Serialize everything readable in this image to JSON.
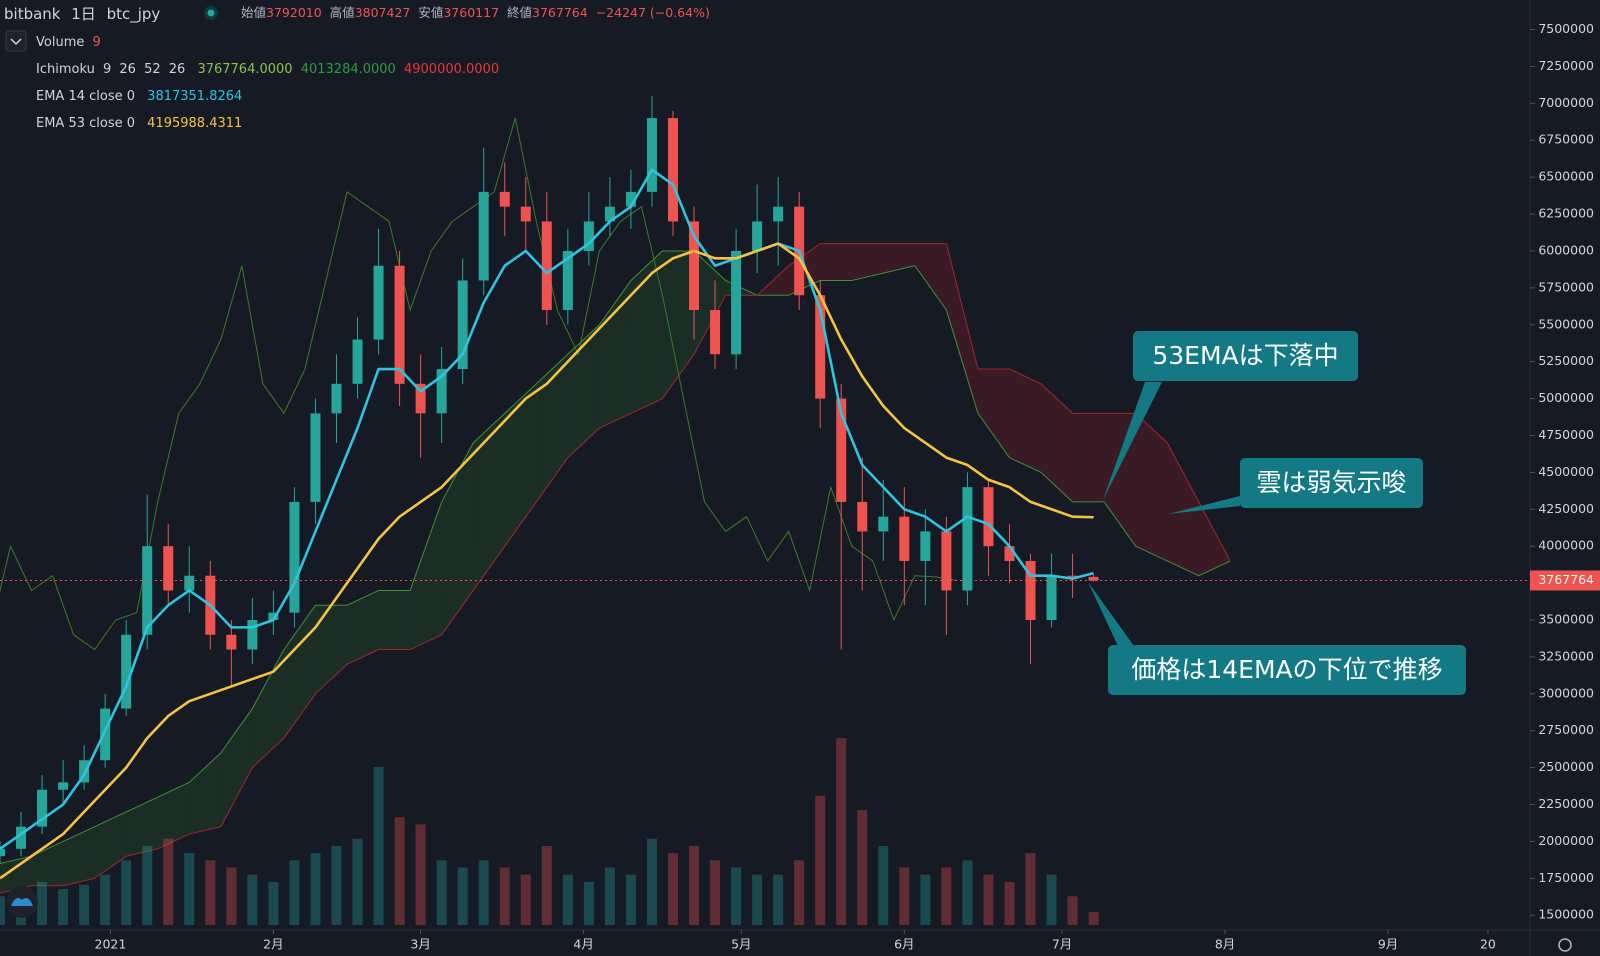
{
  "header": {
    "exchange": "bitbank",
    "interval": "1日",
    "symbol": "btc_jpy",
    "open_label": "始値",
    "high_label": "高値",
    "low_label": "安値",
    "close_label": "終値",
    "change": "−24247 (−0.64%)"
  },
  "legend": {
    "volume": "Volume",
    "ichimoku": "Ichimoku",
    "ichimoku_values": [
      "3767764.0000",
      "4013284.0000",
      "4900000.0000"
    ],
    "ema14": "EMA 14 close 0",
    "ema14_value": "3817351.8264",
    "ema53": "EMA 53 close 0",
    "ema53_value": "4195988.4311"
  },
  "chart_data": {
    "type": "candlestick",
    "x": [
      0,
      4,
      8,
      12,
      16,
      20,
      24,
      28,
      32,
      36,
      40,
      44,
      48,
      52,
      56,
      60,
      64,
      68,
      72,
      76,
      80,
      84,
      88,
      92,
      96,
      100,
      104,
      108,
      112,
      116,
      120,
      124,
      128,
      132,
      136,
      140,
      144,
      148,
      152,
      156,
      160,
      164,
      168,
      172,
      176,
      180,
      184,
      188,
      192,
      196,
      200,
      204,
      208
    ],
    "open": [
      1900000,
      1950000,
      2100000,
      2350000,
      2400000,
      2550000,
      2900000,
      3400000,
      4000000,
      3700000,
      3800000,
      3400000,
      3300000,
      3500000,
      3550000,
      4300000,
      4900000,
      5100000,
      5400000,
      5900000,
      5100000,
      4900000,
      5200000,
      5800000,
      6400000,
      6300000,
      6200000,
      5600000,
      6000000,
      6200000,
      6300000,
      6400000,
      6900000,
      6200000,
      5600000,
      5300000,
      6000000,
      6200000,
      6300000,
      5700000,
      5000000,
      4300000,
      4100000,
      4200000,
      3900000,
      4100000,
      3700000,
      4400000,
      4000000,
      3900000,
      3500000,
      3800000,
      3792010
    ],
    "high": [
      2000000,
      2200000,
      2450000,
      2550000,
      2650000,
      3000000,
      3500000,
      4350000,
      4150000,
      4000000,
      3900000,
      3500000,
      3650000,
      3700000,
      4400000,
      5000000,
      5300000,
      5550000,
      6150000,
      6000000,
      5300000,
      5350000,
      5950000,
      6700000,
      6600000,
      6500000,
      6400000,
      6150000,
      6400000,
      6500000,
      6550000,
      7050000,
      6950000,
      6300000,
      5800000,
      6150000,
      6450000,
      6500000,
      6400000,
      5800000,
      5100000,
      4600000,
      4450000,
      4400000,
      4250000,
      4200000,
      4500000,
      4450000,
      4150000,
      3950000,
      3950000,
      3950000,
      3807427
    ],
    "low": [
      1850000,
      1900000,
      2050000,
      2250000,
      2350000,
      2500000,
      2850000,
      3300000,
      3600000,
      3550000,
      3300000,
      3050000,
      3200000,
      3400000,
      3450000,
      4150000,
      4700000,
      5000000,
      5300000,
      4950000,
      4600000,
      4700000,
      5100000,
      5700000,
      6100000,
      6000000,
      5500000,
      5500000,
      5900000,
      6100000,
      6150000,
      6300000,
      6100000,
      5400000,
      5200000,
      5200000,
      5850000,
      5900000,
      5600000,
      4800000,
      3300000,
      3700000,
      3900000,
      3600000,
      3600000,
      3400000,
      3600000,
      3800000,
      3750000,
      3200000,
      3450000,
      3650000,
      3760117
    ],
    "close": [
      1950000,
      2100000,
      2350000,
      2400000,
      2550000,
      2900000,
      3400000,
      4000000,
      3700000,
      3800000,
      3400000,
      3300000,
      3500000,
      3550000,
      4300000,
      4900000,
      5100000,
      5400000,
      5900000,
      5100000,
      4900000,
      5200000,
      5800000,
      6400000,
      6300000,
      6200000,
      5600000,
      6000000,
      6200000,
      6300000,
      6400000,
      6900000,
      6200000,
      5600000,
      5300000,
      6000000,
      6200000,
      6300000,
      5700000,
      5000000,
      4300000,
      4100000,
      4200000,
      3900000,
      4100000,
      3700000,
      4400000,
      4000000,
      3900000,
      3500000,
      3800000,
      3792010,
      3767764
    ],
    "volume": [
      20,
      22,
      30,
      25,
      28,
      35,
      45,
      55,
      60,
      50,
      45,
      40,
      35,
      30,
      45,
      50,
      55,
      60,
      110,
      75,
      70,
      45,
      40,
      45,
      40,
      35,
      55,
      35,
      30,
      40,
      35,
      60,
      50,
      55,
      45,
      40,
      35,
      35,
      45,
      90,
      130,
      80,
      55,
      40,
      35,
      40,
      45,
      35,
      30,
      50,
      35,
      20,
      9
    ],
    "volume_ylim": [
      0,
      160
    ],
    "up_color": "#26a69a",
    "down_color": "#ef5350",
    "ema_series": [
      {
        "name": "EMA 14",
        "color": "#2ec4e0",
        "values": [
          1950000,
          2050000,
          2150000,
          2250000,
          2450000,
          2750000,
          3050000,
          3450000,
          3600000,
          3700000,
          3600000,
          3450000,
          3450000,
          3500000,
          3750000,
          4100000,
          4450000,
          4800000,
          5200000,
          5200000,
          5050000,
          5150000,
          5300000,
          5650000,
          5900000,
          6000000,
          5850000,
          5950000,
          6050000,
          6200000,
          6300000,
          6550000,
          6450000,
          6100000,
          5900000,
          5950000,
          6000000,
          6050000,
          6000000,
          5600000,
          4900000,
          4550000,
          4400000,
          4250000,
          4200000,
          4100000,
          4200000,
          4150000,
          4000000,
          3800000,
          3800000,
          3780000,
          3817352
        ]
      },
      {
        "name": "EMA 53",
        "color": "#f5c242",
        "values": [
          1750000,
          1850000,
          1950000,
          2050000,
          2200000,
          2350000,
          2500000,
          2700000,
          2850000,
          2950000,
          3000000,
          3050000,
          3100000,
          3150000,
          3300000,
          3450000,
          3650000,
          3850000,
          4050000,
          4200000,
          4300000,
          4400000,
          4550000,
          4700000,
          4850000,
          5000000,
          5100000,
          5250000,
          5400000,
          5550000,
          5700000,
          5850000,
          5950000,
          6000000,
          5950000,
          5950000,
          6000000,
          6050000,
          5950000,
          5700000,
          5400000,
          5150000,
          4950000,
          4800000,
          4700000,
          4600000,
          4550000,
          4450000,
          4400000,
          4300000,
          4250000,
          4200000,
          4195988
        ]
      }
    ],
    "ichimoku_params": [
      9,
      26,
      52,
      26
    ],
    "cloud": {
      "x": [
        0,
        6,
        12,
        18,
        24,
        30,
        36,
        42,
        48,
        54,
        60,
        66,
        72,
        78,
        84,
        90,
        96,
        102,
        108,
        114,
        120,
        126,
        132,
        138,
        144,
        150,
        156,
        162,
        168,
        174,
        180,
        186,
        192,
        198,
        204,
        210,
        216,
        222,
        228,
        234
      ],
      "span_a": [
        1850000,
        1900000,
        2000000,
        2100000,
        2200000,
        2300000,
        2400000,
        2600000,
        2900000,
        3300000,
        3600000,
        3600000,
        3700000,
        3700000,
        4300000,
        4700000,
        4900000,
        5100000,
        5300000,
        5500000,
        5800000,
        6000000,
        6000000,
        5800000,
        5700000,
        5700000,
        5800000,
        5800000,
        5850000,
        5900000,
        5600000,
        4900000,
        4600000,
        4500000,
        4300000,
        4300000,
        4000000,
        3900000,
        3800000,
        3900000
      ],
      "span_b": [
        1650000,
        1700000,
        1700000,
        1750000,
        1900000,
        1950000,
        2050000,
        2100000,
        2500000,
        2700000,
        3000000,
        3200000,
        3300000,
        3300000,
        3400000,
        3700000,
        4000000,
        4300000,
        4600000,
        4800000,
        4900000,
        5000000,
        5300000,
        5700000,
        5700000,
        5900000,
        6050000,
        6050000,
        6050000,
        6050000,
        6050000,
        5200000,
        5200000,
        5100000,
        4900000,
        4900000,
        4900000,
        4700000,
        4300000,
        3900000
      ],
      "span_a_color": "#3f8f3a",
      "span_b_color": "#a3262b",
      "lagging_color": "#3d7a2a"
    },
    "xlim": [
      0,
      291
    ],
    "ylim": [
      1400000,
      7700000
    ],
    "yticks": [
      1500000,
      1750000,
      2000000,
      2250000,
      2500000,
      2750000,
      3000000,
      3250000,
      3500000,
      3750000,
      4000000,
      4250000,
      4500000,
      4750000,
      5000000,
      5250000,
      5500000,
      5750000,
      6000000,
      6250000,
      6500000,
      6750000,
      7000000,
      7250000,
      7500000
    ],
    "xticks": [
      {
        "value": 21,
        "label": "2021"
      },
      {
        "value": 52,
        "label": "2月"
      },
      {
        "value": 80,
        "label": "3月"
      },
      {
        "value": 111,
        "label": "4月"
      },
      {
        "value": 141,
        "label": "5月"
      },
      {
        "value": 172,
        "label": "6月"
      },
      {
        "value": 202,
        "label": "7月"
      },
      {
        "value": 233,
        "label": "8月"
      },
      {
        "value": 264,
        "label": "9月"
      },
      {
        "value": 283,
        "label": "20"
      }
    ],
    "annotations": [
      "53EMAは下落中",
      "雲は弱気示唆",
      "価格は14EMAの下位で推移"
    ]
  }
}
